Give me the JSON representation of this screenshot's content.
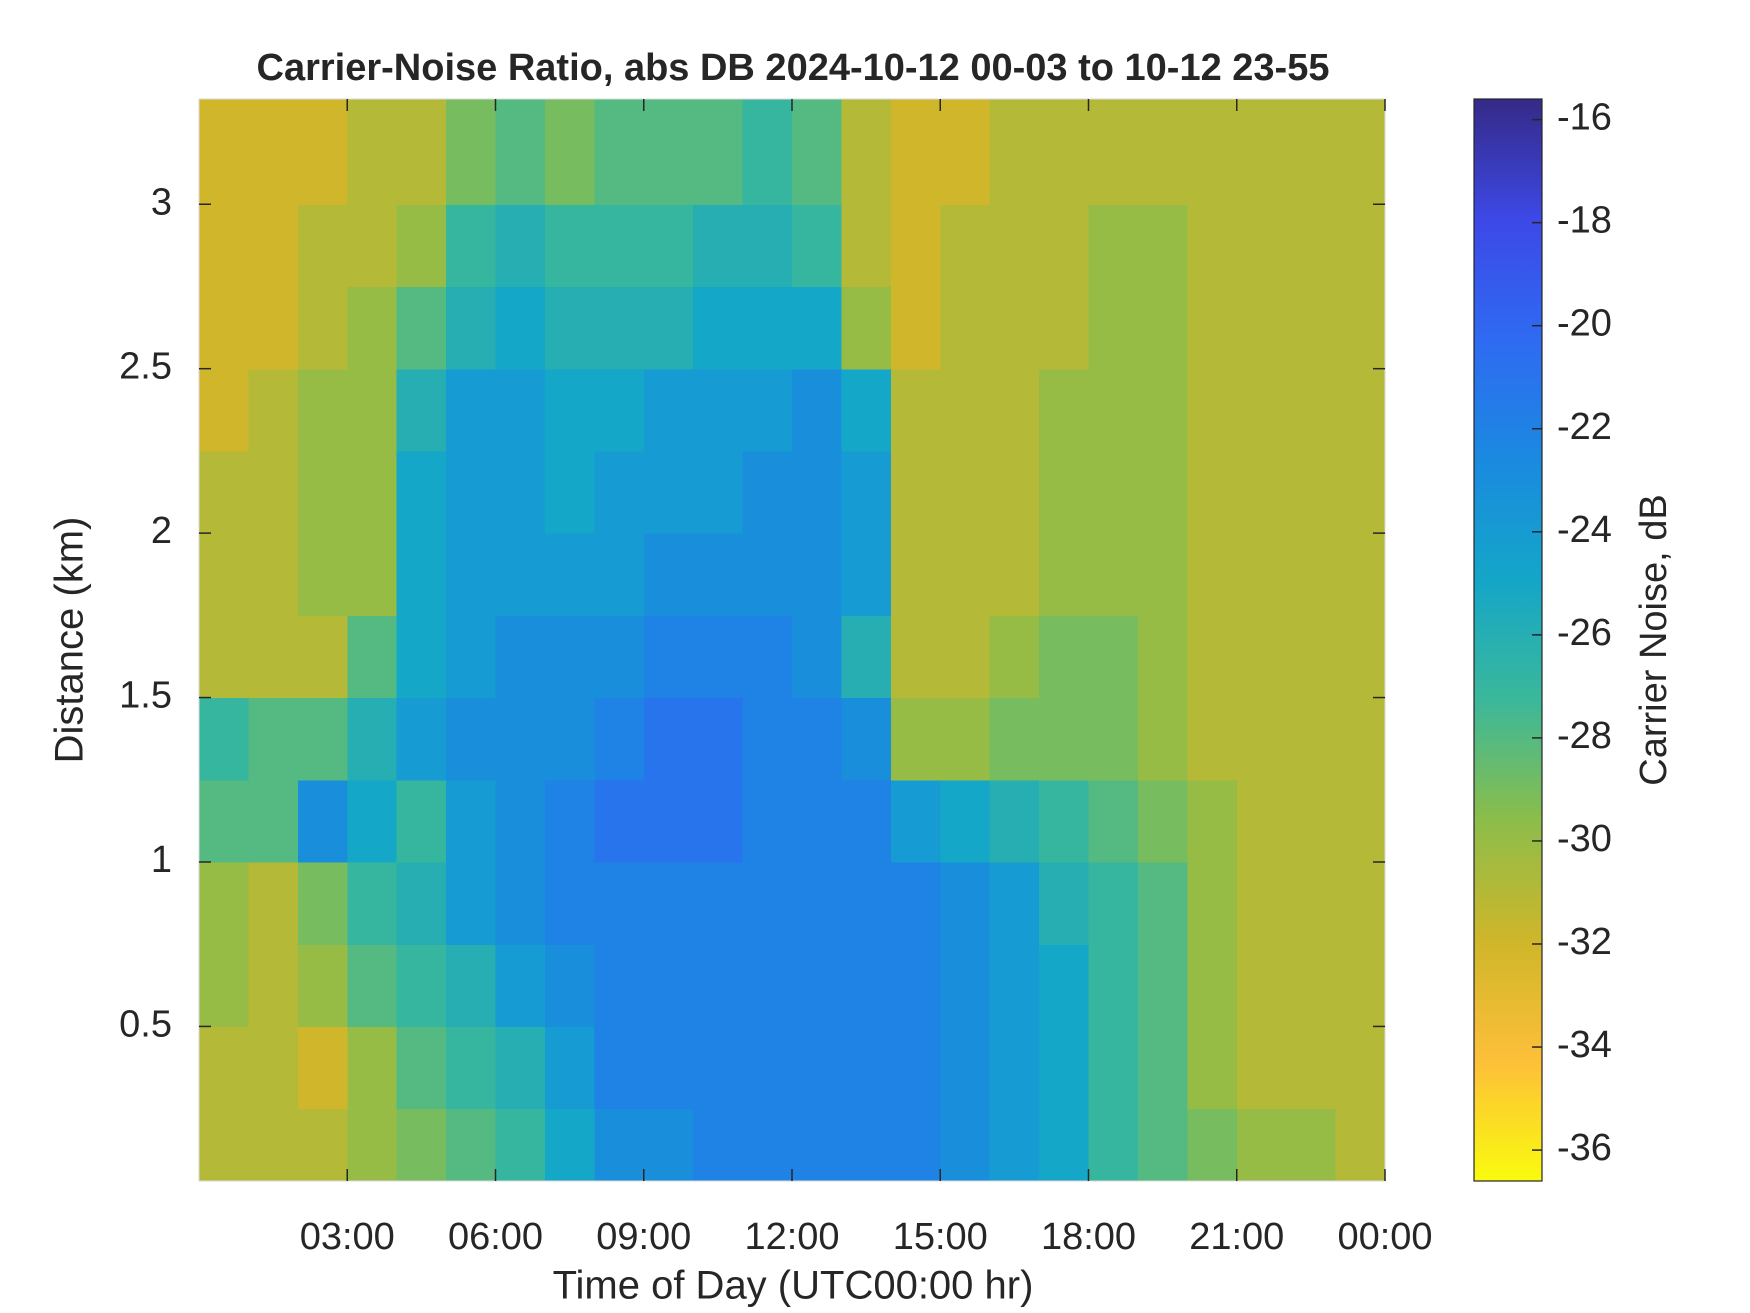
{
  "chart_data": {
    "type": "heatmap",
    "title": "Carrier-Noise Ratio, abs DB 2024-10-12 00-03 to 10-12 23-55",
    "xlabel": "Time of Day (UTC00:00 hr)",
    "ylabel": "Distance (km)",
    "colorbar_label": "Carrier Noise, dB",
    "xlim": [
      0,
      24
    ],
    "xticks": [
      {
        "value": 3,
        "label": "03:00"
      },
      {
        "value": 6,
        "label": "06:00"
      },
      {
        "value": 9,
        "label": "09:00"
      },
      {
        "value": 12,
        "label": "12:00"
      },
      {
        "value": 15,
        "label": "15:00"
      },
      {
        "value": 18,
        "label": "18:00"
      },
      {
        "value": 21,
        "label": "21:00"
      },
      {
        "value": 24,
        "label": "00:00"
      }
    ],
    "ylim": [
      0.03,
      3.32
    ],
    "yticks": [
      0.5,
      1,
      1.5,
      2,
      2.5,
      3
    ],
    "clim": [
      -36.6,
      -15.6
    ],
    "cticks": [
      -16,
      -18,
      -20,
      -22,
      -24,
      -26,
      -28,
      -30,
      -32,
      -34,
      -36
    ],
    "colormap": [
      "#f9fb0e",
      "#fdbf39",
      "#cfb62a",
      "#8cbd4a",
      "#3bb89a",
      "#14a6c8",
      "#1a8ae0",
      "#2f6af2",
      "#3d48e6",
      "#352a87"
    ],
    "x_edges": [
      0,
      1,
      2,
      3,
      4,
      5,
      6,
      7,
      8,
      9,
      10,
      11,
      12,
      13,
      14,
      15,
      16,
      17,
      18,
      19,
      20,
      21,
      22,
      23,
      24
    ],
    "y_edges": [
      0.03,
      0.25,
      0.5,
      0.75,
      1,
      1.25,
      1.5,
      1.75,
      2,
      2.25,
      2.5,
      2.75,
      3,
      3.32
    ],
    "z": [
      [
        -31,
        -31,
        -31,
        -30,
        -29,
        -28,
        -27,
        -25,
        -23,
        -23,
        -22,
        -22,
        -22,
        -22,
        -22,
        -23,
        -24,
        -25,
        -27,
        -28,
        -29,
        -30,
        -30,
        -31
      ],
      [
        -31,
        -31,
        -32,
        -30,
        -28,
        -27,
        -26,
        -24,
        -22,
        -22,
        -22,
        -22,
        -22,
        -22,
        -22,
        -23,
        -24,
        -25,
        -27,
        -28,
        -30,
        -31,
        -31,
        -31
      ],
      [
        -30,
        -31,
        -30,
        -28,
        -27,
        -26,
        -24,
        -23,
        -22,
        -22,
        -22,
        -22,
        -22,
        -22,
        -22,
        -23,
        -24,
        -25,
        -27,
        -28,
        -30,
        -31,
        -31,
        -31
      ],
      [
        -30,
        -31,
        -29,
        -27,
        -26,
        -24,
        -23,
        -22,
        -22,
        -22,
        -22,
        -22,
        -22,
        -22,
        -22,
        -23,
        -24,
        -26,
        -27,
        -28,
        -30,
        -31,
        -31,
        -31
      ],
      [
        -28,
        -28,
        -23,
        -25,
        -27,
        -24,
        -23,
        -22,
        -21,
        -21,
        -21,
        -22,
        -22,
        -22,
        -24,
        -25,
        -26,
        -27,
        -28,
        -29,
        -30,
        -31,
        -31,
        -31
      ],
      [
        -27,
        -28,
        -28,
        -26,
        -24,
        -23,
        -23,
        -23,
        -22,
        -21,
        -21,
        -22,
        -22,
        -23,
        -30,
        -30,
        -29,
        -29,
        -29,
        -30,
        -31,
        -31,
        -31,
        -31
      ],
      [
        -31,
        -31,
        -31,
        -28,
        -25,
        -24,
        -23,
        -23,
        -23,
        -22,
        -22,
        -22,
        -23,
        -26,
        -31,
        -31,
        -30,
        -29,
        -29,
        -30,
        -31,
        -31,
        -31,
        -31
      ],
      [
        -31,
        -31,
        -30,
        -30,
        -25,
        -24,
        -24,
        -24,
        -24,
        -23,
        -23,
        -23,
        -23,
        -24,
        -31,
        -31,
        -31,
        -30,
        -30,
        -30,
        -31,
        -31,
        -31,
        -31
      ],
      [
        -31,
        -31,
        -30,
        -30,
        -25,
        -24,
        -24,
        -25,
        -24,
        -24,
        -24,
        -23,
        -23,
        -24,
        -31,
        -31,
        -31,
        -30,
        -30,
        -30,
        -31,
        -31,
        -31,
        -31
      ],
      [
        -32,
        -31,
        -30,
        -30,
        -26,
        -24,
        -24,
        -25,
        -25,
        -24,
        -24,
        -24,
        -23,
        -25,
        -31,
        -31,
        -31,
        -30,
        -30,
        -30,
        -31,
        -31,
        -31,
        -31
      ],
      [
        -32,
        -32,
        -31,
        -30,
        -28,
        -26,
        -25,
        -26,
        -26,
        -26,
        -25,
        -25,
        -25,
        -30,
        -32,
        -31,
        -31,
        -31,
        -30,
        -30,
        -31,
        -31,
        -31,
        -31
      ],
      [
        -32,
        -32,
        -31,
        -31,
        -30,
        -27,
        -26,
        -27,
        -27,
        -27,
        -26,
        -26,
        -27,
        -31,
        -32,
        -31,
        -31,
        -31,
        -30,
        -30,
        -31,
        -31,
        -31,
        -31
      ],
      [
        -32,
        -32,
        -32,
        -31,
        -31,
        -29,
        -28,
        -29,
        -28,
        -28,
        -28,
        -27,
        -28,
        -31,
        -32,
        -32,
        -31,
        -31,
        -31,
        -31,
        -31,
        -31,
        -31,
        -31
      ]
    ]
  }
}
